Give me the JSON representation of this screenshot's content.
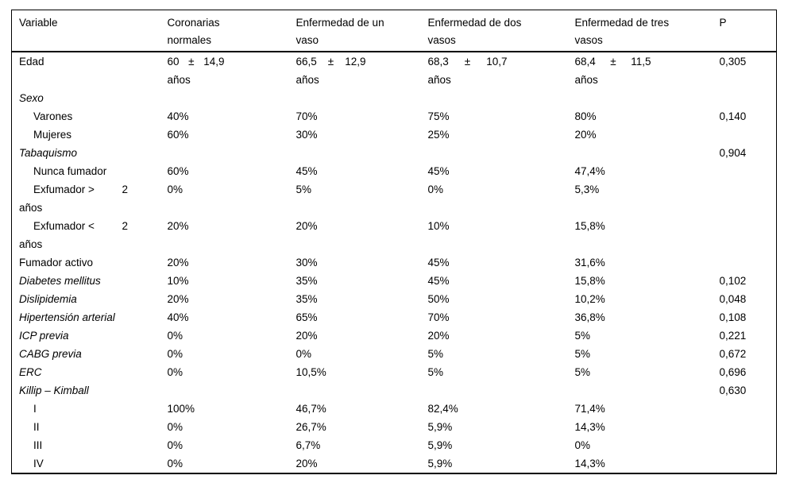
{
  "colors": {
    "background": "#ffffff",
    "text": "#000000",
    "border": "#000000"
  },
  "table": {
    "columns": [
      "Variable",
      "Coronarias normales",
      "Enfermedad de un vaso",
      "Enfermedad de dos vasos",
      "Enfermedad de tres vasos",
      "P"
    ],
    "rows": [
      {
        "label": "Edad",
        "style": "plain",
        "value_wrap": true,
        "cells": [
          "60 ± 14,9 años",
          "66,5 ± 12,9 años",
          "68,3 ± 10,7 años",
          "68,4 ± 11,5 años"
        ],
        "p": "0,305"
      },
      {
        "label": "Sexo",
        "style": "italic",
        "cells": [
          "",
          "",
          "",
          ""
        ],
        "p": ""
      },
      {
        "label": "Varones",
        "style": "indent",
        "cells": [
          "40%",
          "70%",
          "75%",
          "80%"
        ],
        "p": "0,140"
      },
      {
        "label": "Mujeres",
        "style": "indent",
        "cells": [
          "60%",
          "30%",
          "25%",
          "20%"
        ],
        "p": ""
      },
      {
        "label": "Tabaquismo",
        "style": "italic",
        "cells": [
          "",
          "",
          "",
          ""
        ],
        "p": "0,904"
      },
      {
        "label": "Nunca fumador",
        "style": "indent",
        "cells": [
          "60%",
          "45%",
          "45%",
          "47,4%"
        ],
        "p": ""
      },
      {
        "label": "Exfumador > 2 años",
        "style": "indent-wrap",
        "cells": [
          "0%",
          "5%",
          "0%",
          "5,3%"
        ],
        "p": ""
      },
      {
        "label": "Exfumador < 2 años",
        "style": "indent-wrap",
        "cells": [
          "20%",
          "20%",
          "10%",
          "15,8%"
        ],
        "p": ""
      },
      {
        "label": "Fumador activo",
        "style": "plain",
        "cells": [
          "20%",
          "30%",
          "45%",
          "31,6%"
        ],
        "p": ""
      },
      {
        "label": "Diabetes mellitus",
        "style": "italic",
        "cells": [
          "10%",
          "35%",
          "45%",
          "15,8%"
        ],
        "p": "0,102"
      },
      {
        "label": "Dislipidemia",
        "style": "italic",
        "cells": [
          "20%",
          "35%",
          "50%",
          "10,2%"
        ],
        "p": "0,048"
      },
      {
        "label": "Hipertensión arterial",
        "style": "italic",
        "cells": [
          "40%",
          "65%",
          "70%",
          "36,8%"
        ],
        "p": "0,108"
      },
      {
        "label": "ICP previa",
        "style": "italic",
        "cells": [
          "0%",
          "20%",
          "20%",
          "5%"
        ],
        "p": "0,221"
      },
      {
        "label": "CABG previa",
        "style": "italic",
        "cells": [
          "0%",
          "0%",
          "5%",
          "5%"
        ],
        "p": "0,672"
      },
      {
        "label": "ERC",
        "style": "italic",
        "cells": [
          "0%",
          "10,5%",
          "5%",
          "5%"
        ],
        "p": "0,696"
      },
      {
        "label": "Killip – Kimball",
        "style": "italic",
        "cells": [
          "",
          "",
          "",
          ""
        ],
        "p": "0,630"
      },
      {
        "label": "I",
        "style": "indent",
        "cells": [
          "100%",
          "46,7%",
          "82,4%",
          "71,4%"
        ],
        "p": ""
      },
      {
        "label": "II",
        "style": "indent",
        "cells": [
          "0%",
          "26,7%",
          "5,9%",
          "14,3%"
        ],
        "p": ""
      },
      {
        "label": "III",
        "style": "indent",
        "cells": [
          "0%",
          "6,7%",
          "5,9%",
          "0%"
        ],
        "p": ""
      },
      {
        "label": "IV",
        "style": "indent",
        "cells": [
          "0%",
          "20%",
          "5,9%",
          "14,3%"
        ],
        "p": ""
      }
    ]
  }
}
